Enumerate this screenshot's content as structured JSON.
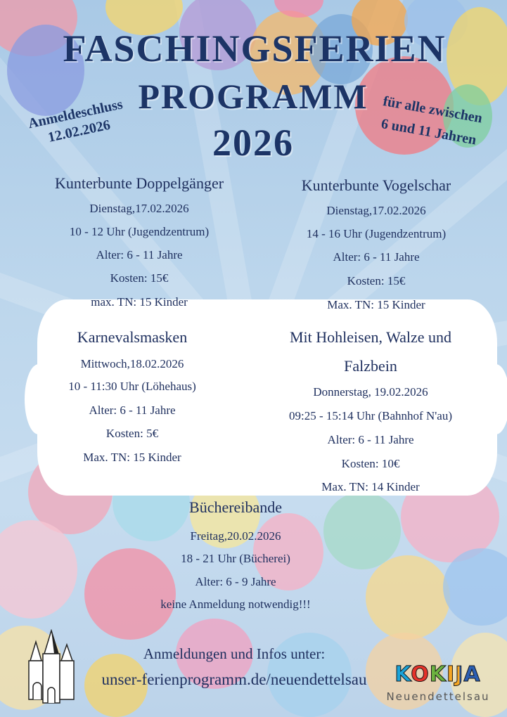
{
  "header": {
    "title_line1": "FASCHINGSFERIEN",
    "title_line2": "PROGRAMM",
    "title_line3": "2026",
    "deadline_label": "Anmeldeschluss",
    "deadline_date": "12.02.2026",
    "age_note_line1": "für alle zwischen",
    "age_note_line2": "6 und 11 Jahren"
  },
  "events": [
    {
      "title": "Kunterbunte Doppelgänger",
      "date": "Dienstag,17.02.2026",
      "time": "10 - 12 Uhr (Jugendzentrum)",
      "age": "Alter: 6 - 11 Jahre",
      "cost": "Kosten: 15€",
      "participants": "max. TN: 15 Kinder"
    },
    {
      "title": "Kunterbunte Vogelschar",
      "date": "Dienstag,17.02.2026",
      "time": "14 - 16 Uhr (Jugendzentrum)",
      "age": "Alter: 6 - 11 Jahre",
      "cost": "Kosten: 15€",
      "participants": "Max. TN: 15 Kinder"
    },
    {
      "title": "Karnevalsmasken",
      "date": "Mittwoch,18.02.2026",
      "time": "10 - 11:30 Uhr (Löhehaus)",
      "age": "Alter: 6 - 11 Jahre",
      "cost": "Kosten: 5€",
      "participants": "Max. TN: 15 Kinder"
    },
    {
      "title": "Mit Hohleisen, Walze und",
      "title2": "Falzbein",
      "date": "Donnerstag, 19.02.2026",
      "time": "09:25  - 15:14 Uhr (Bahnhof N'au)",
      "age": "Alter: 6 - 11 Jahre",
      "cost": "Kosten: 10€",
      "participants": "Max. TN: 14 Kinder"
    },
    {
      "title": "Büchereibande",
      "date": "Freitag,20.02.2026",
      "time": "18 - 21 Uhr (Bücherei)",
      "age": "Alter: 6 - 9  Jahre",
      "note": "keine Anmeldung notwendig!!!"
    }
  ],
  "footer": {
    "info": "Anmeldungen und Infos unter:",
    "url": "unser-ferienprogramm.de/neuendettelsau",
    "logo_text": "KOKIJA",
    "logo_sub": "Neuendettelsau"
  },
  "colors": {
    "text": "#1e2f5e",
    "background": "#bcd6ec"
  }
}
